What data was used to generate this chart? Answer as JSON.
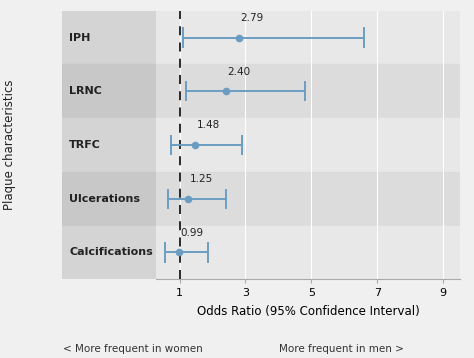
{
  "categories": [
    "IPH",
    "LRNC",
    "TRFC",
    "Ulcerations",
    "Calcifications"
  ],
  "or_values": [
    2.79,
    2.4,
    1.48,
    1.25,
    0.99
  ],
  "ci_lower": [
    1.1,
    1.2,
    0.75,
    0.65,
    0.55
  ],
  "ci_upper": [
    6.6,
    4.8,
    2.9,
    2.4,
    1.85
  ],
  "or_labels": [
    "2.79",
    "2.40",
    "1.48",
    "1.25",
    "0.99"
  ],
  "xlabel": "Odds Ratio (95% Confidence Interval)",
  "ylabel": "Plaque characteristics",
  "xlim": [
    0.3,
    9.5
  ],
  "xticks": [
    1,
    3,
    5,
    7,
    9
  ],
  "xticklabels": [
    "1",
    "3",
    "5",
    "7",
    "9"
  ],
  "ref_line": 1,
  "subtitle_left": "< More frequent in women",
  "subtitle_right": "More frequent in men >",
  "dot_color": "#6b9dc2",
  "line_color": "#6b9dc2",
  "dashed_line_color": "#1a1a1a",
  "label_panel_colors": [
    "#d4d4d4",
    "#c8c8c8",
    "#d4d4d4",
    "#c8c8c8",
    "#d4d4d4"
  ],
  "plot_panel_colors": [
    "#e8e8e8",
    "#dcdcdc",
    "#e8e8e8",
    "#dcdcdc",
    "#e8e8e8"
  ],
  "grid_color": "#ffffff",
  "fig_bg_color": "#f0f0f0",
  "font_size_cat": 8,
  "font_size_tick": 8,
  "font_size_xlabel": 8.5,
  "font_size_ylabel": 8.5,
  "font_size_subtitle": 7.5,
  "font_size_or_label": 7.5,
  "font_weight_cat": "bold"
}
